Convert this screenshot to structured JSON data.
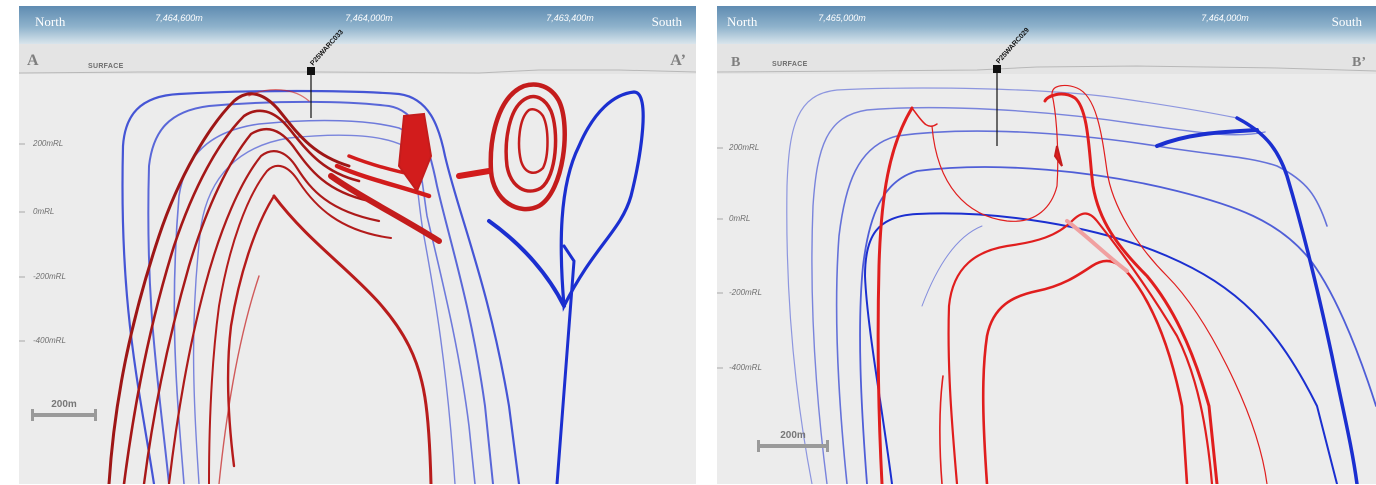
{
  "colors": {
    "positive": "#d21c1c",
    "dark_positive": "#9e1616",
    "negative": "#1b2fd0",
    "header_gradient_top": "#5f8bb1",
    "background": "#ececec"
  },
  "panels": [
    {
      "id": "A",
      "left_label": "A",
      "right_label": "A’",
      "north_label": "North",
      "south_label": "South",
      "surface_label": "SURFACE",
      "coordinates": [
        "7,464,600m",
        "7,464,000m",
        "7,463,400m"
      ],
      "rl_labels": [
        "200mRL",
        "0mRL",
        "-200mRL",
        "-400mRL"
      ],
      "drillhole": "P25WARC033",
      "scale_label": "200m"
    },
    {
      "id": "B",
      "left_label": "B",
      "right_label": "B’",
      "north_label": "North",
      "south_label": "South",
      "surface_label": "SURFACE",
      "coordinates": [
        "7,465,000m",
        "7,464,000m"
      ],
      "rl_labels": [
        "200mRL",
        "0mRL",
        "-200mRL",
        "-400mRL"
      ],
      "drillhole": "P25WARC029",
      "scale_label": "200m"
    }
  ]
}
